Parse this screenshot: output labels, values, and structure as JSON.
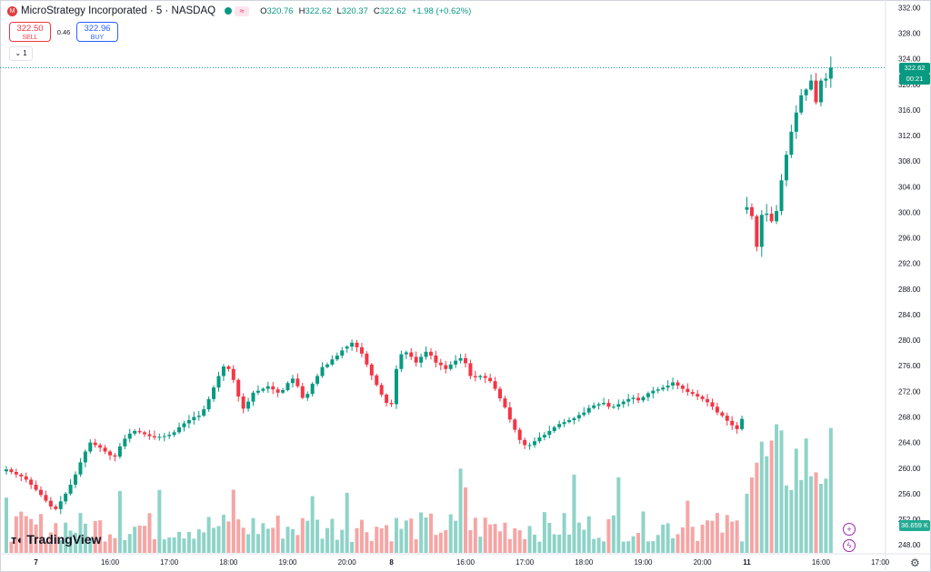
{
  "header": {
    "symbol_icon": "microstrategy-logo-icon",
    "title": "MicroStrategy Incorporated · 5 · NASDAQ",
    "market_status_icon": "market-open-dot-icon",
    "data_status_icon": "delayed-data-icon",
    "ohlc": [
      {
        "key": "O",
        "value": "320.76"
      },
      {
        "key": "H",
        "value": "322.62"
      },
      {
        "key": "L",
        "value": "320.37"
      },
      {
        "key": "C",
        "value": "322.62"
      },
      {
        "key": "",
        "value": "+1.98 (+0.62%)"
      }
    ]
  },
  "trade": {
    "sell_price": "322.50",
    "sell_label": "SELL",
    "spread": "0.46",
    "buy_price": "322.96",
    "buy_label": "BUY"
  },
  "indicators_toggle": "⌄ 1",
  "branding": {
    "logo_icon": "tradingview-logo-icon",
    "name": "TradingView"
  },
  "badges": {
    "last_price": "322.62",
    "countdown": "00:21",
    "volume": "36.659 K"
  },
  "controls": {
    "add_icon": "plus-icon",
    "alert_icon": "lightning-icon",
    "settings_icon": "gear-icon"
  },
  "colors": {
    "up": "#089981",
    "down": "#f23645",
    "vol_up": "#8fd3c8",
    "vol_down": "#f6a5a5",
    "accent": "#2962ff"
  },
  "chart_data": {
    "type": "candlestick",
    "interval": "5",
    "y_ticks": [
      "332.00",
      "328.00",
      "324.00",
      "320.00",
      "316.00",
      "312.00",
      "308.00",
      "304.00",
      "300.00",
      "296.00",
      "292.00",
      "288.00",
      "284.00",
      "280.00",
      "276.00",
      "272.00",
      "268.00",
      "264.00",
      "260.00",
      "256.00",
      "252.00",
      "248.00"
    ],
    "ylim": [
      246.6,
      333.2
    ],
    "x_ticks": [
      "7",
      "16:00",
      "17:00",
      "18:00",
      "19:00",
      "20:00",
      "8",
      "16:00",
      "17:00",
      "18:00",
      "19:00",
      "20:00",
      "11",
      "16:00",
      "17:00"
    ],
    "x_tick_bars": [
      6,
      21,
      33,
      45,
      57,
      69,
      78,
      93,
      105,
      117,
      129,
      141,
      150,
      165,
      177
    ],
    "bar_count": 168,
    "last_price": 322.62,
    "sessions": [
      {
        "date": "7",
        "start_bar": 0,
        "end_bar": 68,
        "closes": [
          259.8,
          259.4,
          259.0,
          258.7,
          258.2,
          257.4,
          256.6,
          255.8,
          254.9,
          254.0,
          253.6,
          254.8,
          256.0,
          257.4,
          259.0,
          260.9,
          262.6,
          264.0,
          263.6,
          263.2,
          262.6,
          262.0,
          261.8,
          263.4,
          264.6,
          265.4,
          265.8,
          265.6,
          265.3,
          265.0,
          264.8,
          264.9,
          265.0,
          265.2,
          265.6,
          266.4,
          267.0,
          267.5,
          268.0,
          268.2,
          269.2,
          270.8,
          272.6,
          274.4,
          275.9,
          275.5,
          273.8,
          271.2,
          269.3,
          270.4,
          271.8,
          272.1,
          272.4,
          272.8,
          272.3,
          271.8,
          272.2,
          273.3,
          274.0,
          272.8,
          271.0,
          271.6,
          273.2,
          274.4,
          275.8,
          276.2,
          277.0,
          277.6,
          278.4
        ]
      },
      {
        "date": "8",
        "start_bar": 69,
        "end_bar": 149,
        "closes": [
          279.0,
          279.6,
          278.9,
          277.9,
          276.2,
          274.5,
          273.0,
          271.5,
          270.2,
          270.0,
          275.5,
          277.8,
          278.1,
          277.4,
          276.5,
          277.4,
          278.2,
          277.6,
          276.5,
          276.1,
          275.5,
          276.2,
          276.8,
          277.2,
          276.4,
          274.4,
          274.2,
          274.4,
          274.1,
          273.6,
          272.4,
          270.9,
          269.5,
          267.6,
          266.0,
          264.4,
          263.6,
          263.6,
          264.2,
          264.8,
          265.2,
          265.8,
          266.4,
          266.9,
          267.2,
          267.5,
          267.8,
          268.3,
          268.7,
          269.4,
          269.8,
          270.0,
          270.2,
          269.6,
          269.6,
          270.0,
          270.4,
          270.8,
          271.0,
          270.6,
          271.1,
          271.7,
          272.1,
          272.3,
          272.6,
          272.9,
          273.4,
          272.9,
          272.4,
          271.9,
          271.6,
          271.2,
          270.8,
          270.3,
          269.6,
          268.7,
          268.2,
          267.4,
          266.7,
          266.1,
          267.7
        ]
      },
      {
        "date": "11",
        "start_bar": 150,
        "end_bar": 167,
        "closes": [
          300.8,
          299.4,
          294.6,
          299.6,
          299.8,
          298.6,
          300.2,
          305.0,
          309.0,
          312.6,
          315.6,
          318.3,
          319.2,
          320.6,
          317.2,
          320.6,
          320.9,
          322.62
        ]
      }
    ]
  }
}
